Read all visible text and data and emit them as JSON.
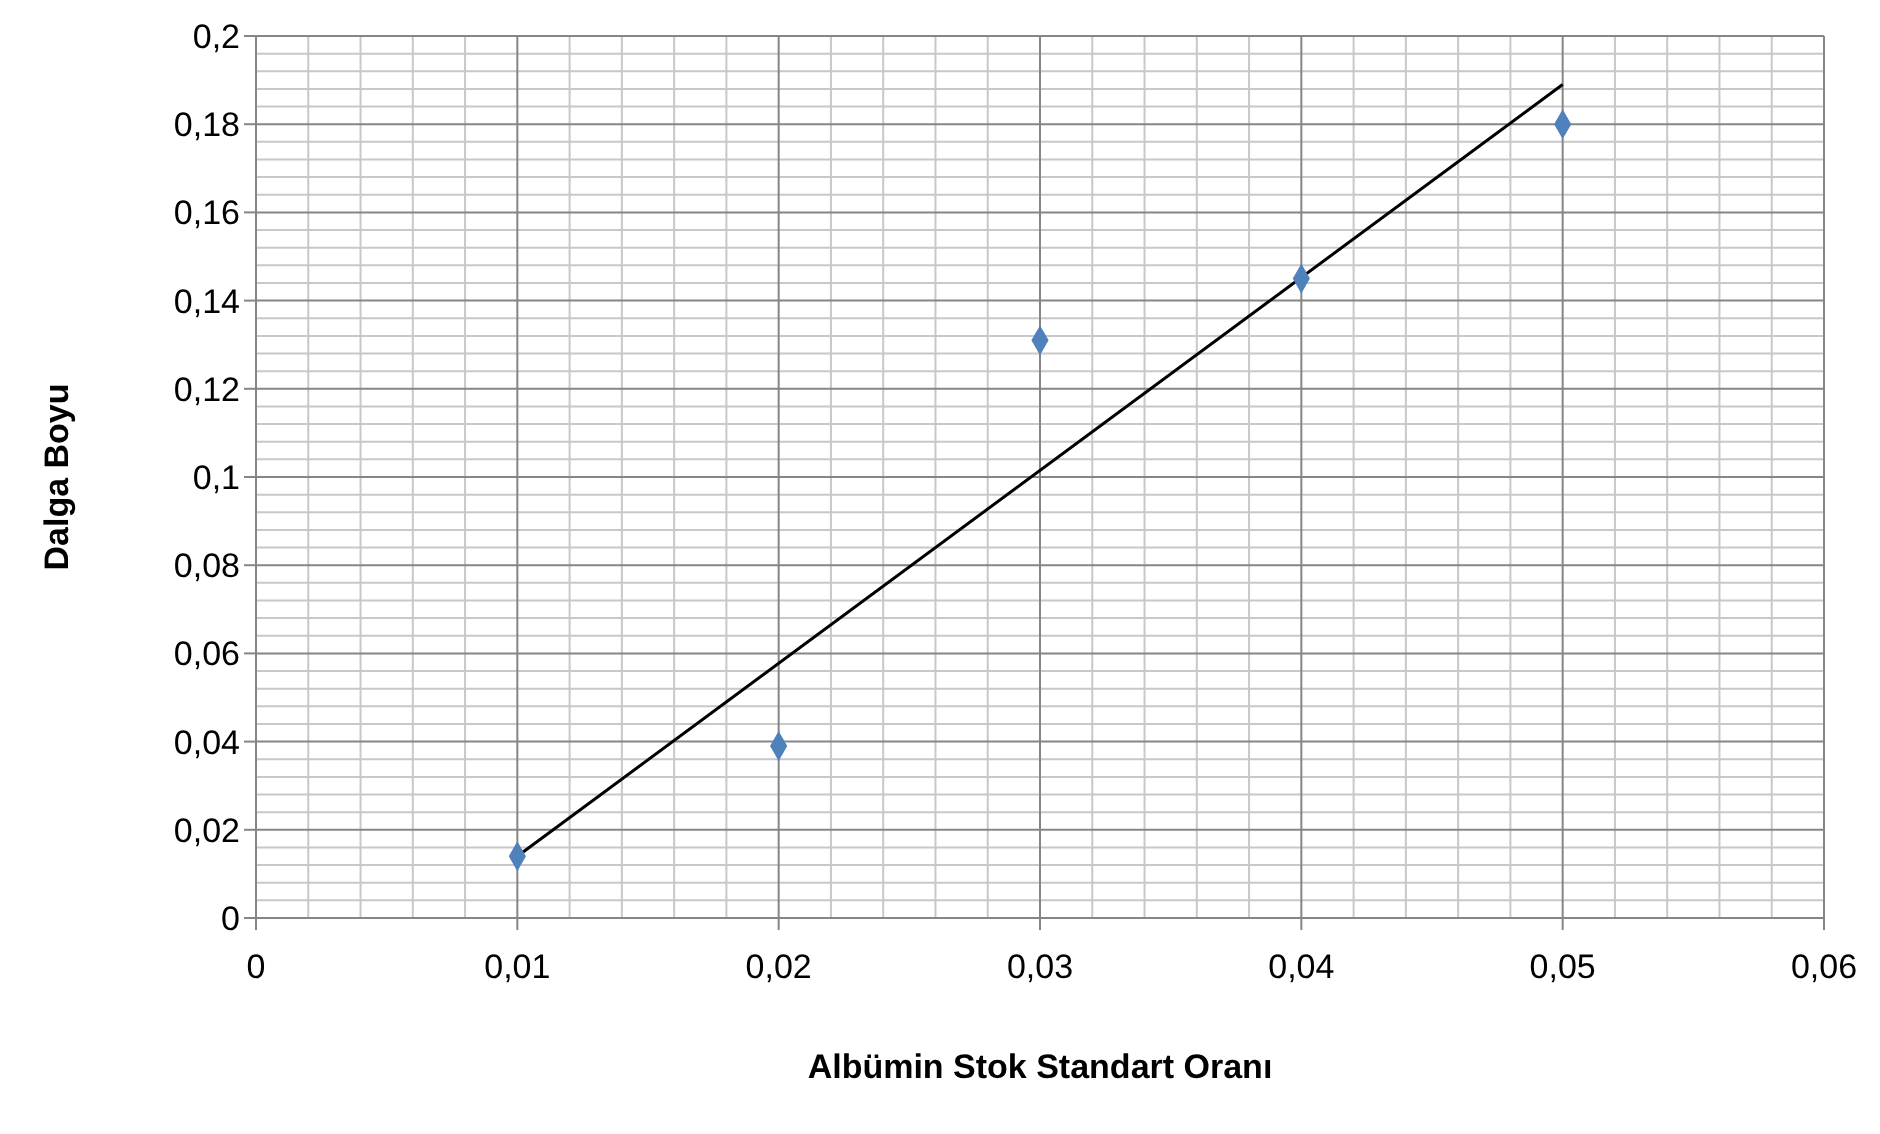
{
  "chart_data": {
    "type": "scatter",
    "xlabel": "Albümin Stok Standart Oranı",
    "ylabel": "Dalga Boyu",
    "x": [
      0.01,
      0.02,
      0.03,
      0.04,
      0.05
    ],
    "series": [
      {
        "color": "#4f81bd",
        "values": [
          0.014,
          0.039,
          0.131,
          0.145,
          0.18
        ],
        "marker": "diamond"
      },
      {
        "type": "line",
        "color": "#000000",
        "x": [
          0.01,
          0.05
        ],
        "values": [
          0.014,
          0.189
        ],
        "marker": "none",
        "line_style": "solid"
      }
    ],
    "xlim": [
      0,
      0.06
    ],
    "xticks": [
      0,
      {
        "value": 0.01,
        "label": "0,01"
      },
      {
        "value": 0.02,
        "label": "0,02"
      },
      {
        "value": 0.03,
        "label": "0,03"
      },
      {
        "value": 0.04,
        "label": "0,04"
      },
      {
        "value": 0.05,
        "label": "0,05"
      },
      {
        "value": 0.06,
        "label": "0,06"
      }
    ],
    "ylim": [
      0,
      0.2
    ],
    "yticks": [
      0,
      {
        "value": 0.02,
        "label": "0,02"
      },
      {
        "value": 0.04,
        "label": "0,04"
      },
      {
        "value": 0.06,
        "label": "0,06"
      },
      {
        "value": 0.08,
        "label": "0,08"
      },
      {
        "value": 0.1,
        "label": "0,1"
      },
      {
        "value": 0.12,
        "label": "0,12"
      },
      {
        "value": 0.14,
        "label": "0,14"
      },
      {
        "value": 0.16,
        "label": "0,16"
      },
      {
        "value": 0.18,
        "label": "0,18"
      },
      {
        "value": 0.2,
        "label": "0,2"
      }
    ],
    "grid": true
  }
}
